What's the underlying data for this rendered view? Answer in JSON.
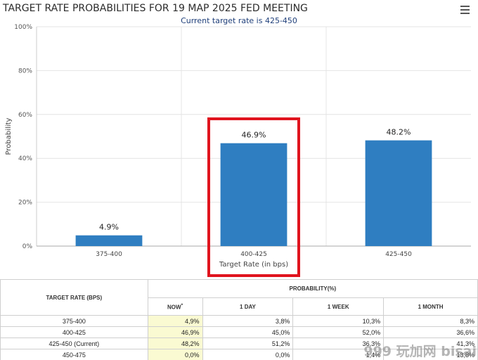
{
  "header": {
    "title": "TARGET RATE PROBABILITIES FOR 19 MAP 2025 FED MEETING",
    "subtitle": "Current target rate is 425-450"
  },
  "chart_data": {
    "type": "bar",
    "categories": [
      "375-400",
      "400-425",
      "425-450"
    ],
    "values": [
      4.9,
      46.9,
      48.2
    ],
    "data_labels": [
      "4.9%",
      "46.9%",
      "48.2%"
    ],
    "title": "TARGET RATE PROBABILITIES FOR 19 MAP 2025 FED MEETING",
    "subtitle": "Current target rate is 425-450",
    "xlabel": "Target Rate (in bps)",
    "ylabel": "Probability",
    "ylim": [
      0,
      100
    ],
    "yticks": [
      "0%",
      "20%",
      "40%",
      "60%",
      "80%",
      "100%"
    ],
    "grid": true,
    "bar_color": "#2f7ec1",
    "highlight_category": "400-425",
    "highlight_color": "#e0141e"
  },
  "table": {
    "header_target": "TARGET RATE (BPS)",
    "header_prob": "PROBABILITY(%)",
    "col_now": "NOW",
    "col_now_mark": "*",
    "col_day": "1 DAY",
    "col_week": "1 WEEK",
    "col_month": "1 MONTH",
    "rows": [
      {
        "rate": "375-400",
        "now": "4,9%",
        "day": "3,8%",
        "week": "10,3%",
        "month": "8,3%"
      },
      {
        "rate": "400-425",
        "now": "46,9%",
        "day": "45,0%",
        "week": "52,0%",
        "month": "36,6%"
      },
      {
        "rate": "425-450 (Current)",
        "now": "48,2%",
        "day": "51,2%",
        "week": "36,3%",
        "month": "41,3%"
      },
      {
        "rate": "450-475",
        "now": "0,0%",
        "day": "0,0%",
        "week": "1,4%",
        "month": "13,8%"
      }
    ]
  },
  "watermark": "999 玩加网 bisai"
}
